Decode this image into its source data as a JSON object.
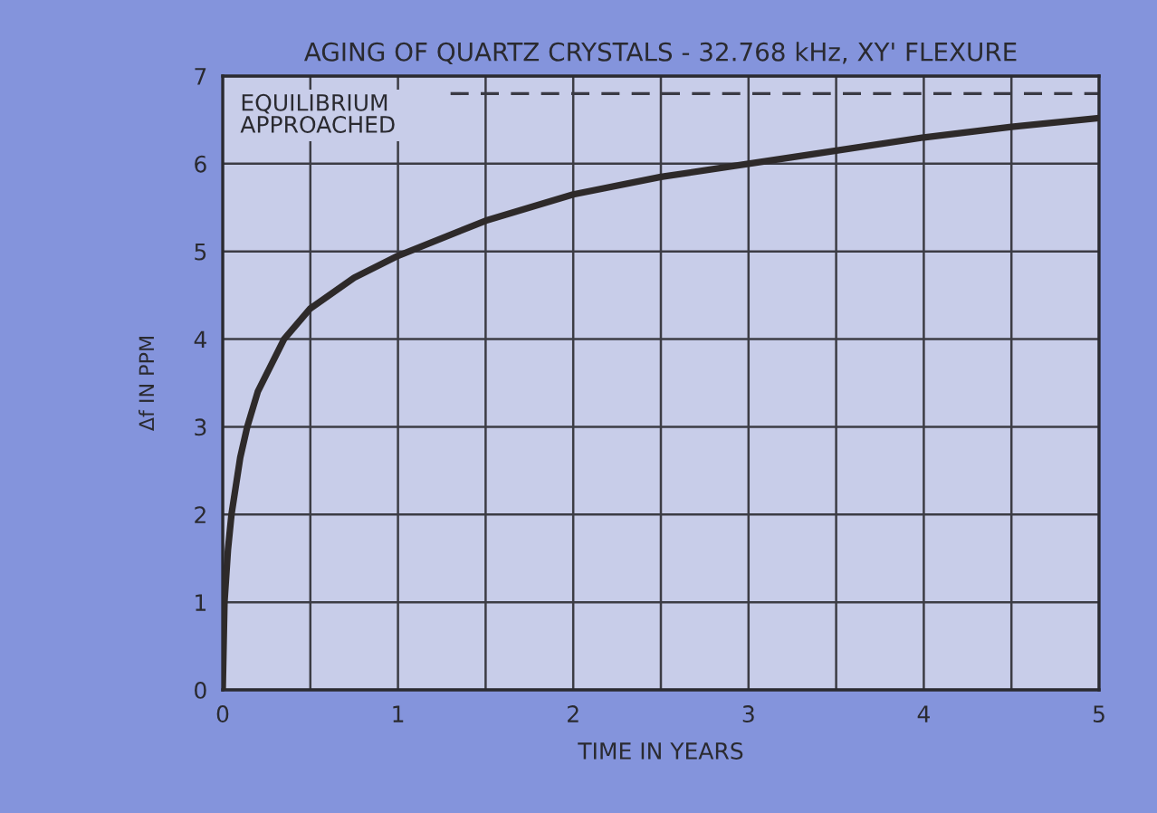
{
  "chart_data": {
    "type": "line",
    "title": "AGING OF QUARTZ CRYSTALS - 32.768 kHz, XY' FLEXURE",
    "xlabel": "TIME IN YEARS",
    "ylabel": "Δf IN PPM",
    "x": [
      0,
      0.01,
      0.03,
      0.05,
      0.1,
      0.14,
      0.2,
      0.35,
      0.5,
      0.75,
      1,
      1.5,
      2,
      2.5,
      3,
      3.5,
      4,
      4.5,
      5
    ],
    "series": [
      {
        "color": "#2e2a2a",
        "values": [
          0,
          1,
          1.6,
          2,
          2.65,
          3,
          3.4,
          4,
          4.35,
          4.7,
          4.95,
          5.35,
          5.65,
          5.85,
          6.0,
          6.15,
          6.3,
          6.42,
          6.52
        ]
      }
    ],
    "xlim": [
      0,
      5
    ],
    "ylim": [
      0,
      7
    ],
    "xticks": [
      0,
      {
        "value": 0.5,
        "label": null
      },
      1,
      {
        "value": 1.5,
        "label": null
      },
      2,
      {
        "value": 2.5,
        "label": null
      },
      3,
      {
        "value": 3.5,
        "label": null
      },
      4,
      {
        "value": 4.5,
        "label": null
      },
      5
    ],
    "yticks": [
      0,
      1,
      2,
      3,
      4,
      5,
      6,
      7
    ],
    "ref_lines": [
      {
        "axis": "y",
        "value": 6.8,
        "label": "EQUILIBRIUM\nAPPROACHED",
        "color": "#3a3a44",
        "line_style": "dashed"
      }
    ],
    "grid": true,
    "marker": "none",
    "line_style": "solid"
  }
}
